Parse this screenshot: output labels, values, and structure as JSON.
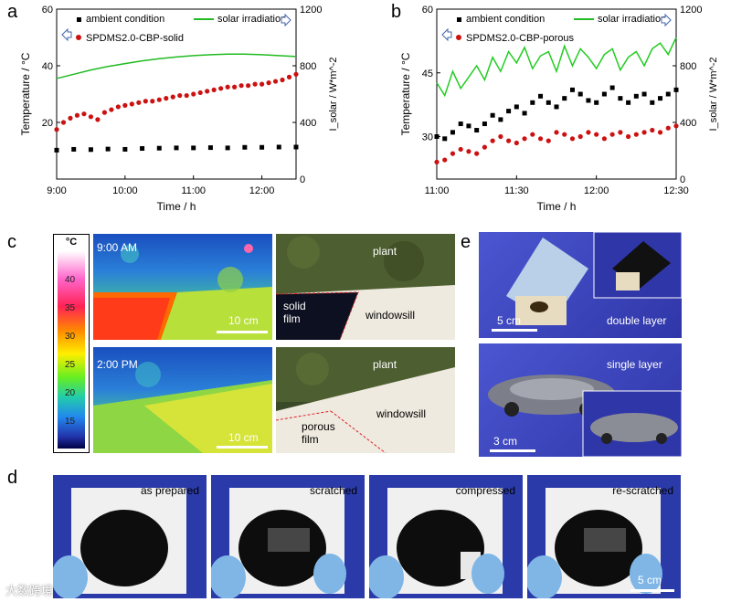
{
  "panels": {
    "a": "a",
    "b": "b",
    "c": "c",
    "d": "d",
    "e": "e"
  },
  "chart_data": [
    {
      "type": "line",
      "panel": "a",
      "xlabel": "Time / h",
      "ylabel_left": "Temperature / °C",
      "ylabel_right": "I_solar / W*m^-2",
      "x_ticks": [
        "9:00",
        "10:00",
        "11:00",
        "12:00"
      ],
      "x_tick_values": [
        9.0,
        10.0,
        11.0,
        12.0
      ],
      "xlim": [
        9.0,
        12.5
      ],
      "ylim_left": [
        0,
        60
      ],
      "ylim_right": [
        0,
        1200
      ],
      "y_ticks_left": [
        "20",
        "40",
        "60"
      ],
      "y_ticks_right": [
        "0",
        "400",
        "800",
        "1200"
      ],
      "legend": {
        "ambient": "ambient condition",
        "solar": "solar irradiation",
        "sample": "SPDMS2.0-CBP-solid"
      },
      "series": [
        {
          "name": "ambient condition",
          "axis": "left",
          "style": "markers",
          "color": "#000000",
          "x": [
            9.0,
            9.25,
            9.5,
            9.75,
            10.0,
            10.25,
            10.5,
            10.75,
            11.0,
            11.25,
            11.5,
            11.75,
            12.0,
            12.25,
            12.5
          ],
          "y": [
            10.2,
            10.5,
            10.4,
            10.6,
            10.5,
            10.8,
            10.9,
            11.0,
            11.0,
            11.1,
            11.0,
            11.2,
            11.2,
            11.3,
            11.3
          ]
        },
        {
          "name": "solar irradiation",
          "axis": "right",
          "style": "line",
          "color": "#22bb22",
          "x": [
            9.0,
            9.25,
            9.5,
            9.75,
            10.0,
            10.25,
            10.5,
            10.75,
            11.0,
            11.25,
            11.5,
            11.75,
            12.0,
            12.25,
            12.5
          ],
          "y": [
            710,
            740,
            770,
            795,
            815,
            835,
            850,
            862,
            872,
            878,
            882,
            882,
            878,
            872,
            865
          ]
        },
        {
          "name": "SPDMS2.0-CBP-solid",
          "axis": "left",
          "style": "markers",
          "color": "#cc1111",
          "x": [
            9.0,
            9.1,
            9.2,
            9.3,
            9.4,
            9.5,
            9.6,
            9.7,
            9.8,
            9.9,
            10.0,
            10.1,
            10.2,
            10.3,
            10.4,
            10.5,
            10.6,
            10.7,
            10.8,
            10.9,
            11.0,
            11.1,
            11.2,
            11.3,
            11.4,
            11.5,
            11.6,
            11.7,
            11.8,
            11.9,
            12.0,
            12.1,
            12.2,
            12.3,
            12.4,
            12.5
          ],
          "y": [
            17.5,
            20.0,
            21.5,
            22.5,
            23.0,
            22.0,
            21.0,
            23.5,
            24.5,
            25.5,
            26.0,
            26.5,
            27.0,
            27.5,
            27.5,
            28.0,
            28.5,
            29.0,
            29.5,
            29.5,
            30.0,
            30.5,
            31.0,
            31.5,
            32.0,
            32.5,
            32.5,
            33.0,
            33.0,
            33.5,
            33.5,
            34.0,
            34.5,
            35.0,
            36.0,
            37.0
          ]
        }
      ]
    },
    {
      "type": "line",
      "panel": "b",
      "xlabel": "Time / h",
      "ylabel_left": "Temperature / °C",
      "ylabel_right": "I_solar / W*m^-2",
      "x_ticks": [
        "11:00",
        "11:30",
        "12:00",
        "12:30"
      ],
      "x_tick_values": [
        11.0,
        11.5,
        12.0,
        12.5
      ],
      "xlim": [
        11.0,
        12.5
      ],
      "ylim_left": [
        20,
        60
      ],
      "ylim_right": [
        0,
        1200
      ],
      "y_ticks_left": [
        "30",
        "45",
        "60"
      ],
      "y_ticks_right": [
        "0",
        "400",
        "800",
        "1200"
      ],
      "legend": {
        "ambient": "ambient condition",
        "solar": "solar irradiation",
        "sample": "SPDMS2.0-CBP-porous"
      },
      "series": [
        {
          "name": "ambient condition",
          "axis": "left",
          "style": "markers",
          "color": "#000000",
          "x": [
            11.0,
            11.05,
            11.1,
            11.15,
            11.2,
            11.25,
            11.3,
            11.35,
            11.4,
            11.45,
            11.5,
            11.55,
            11.6,
            11.65,
            11.7,
            11.75,
            11.8,
            11.85,
            11.9,
            11.95,
            12.0,
            12.05,
            12.1,
            12.15,
            12.2,
            12.25,
            12.3,
            12.35,
            12.4,
            12.45,
            12.5
          ],
          "y": [
            30.0,
            29.5,
            31.0,
            33.0,
            32.5,
            31.5,
            33.0,
            35.0,
            34.0,
            36.0,
            37.0,
            35.5,
            38.0,
            39.5,
            38.0,
            37.0,
            39.0,
            41.0,
            40.0,
            38.5,
            38.0,
            40.0,
            41.5,
            39.0,
            38.0,
            39.5,
            40.0,
            38.0,
            39.0,
            40.0,
            41.0
          ]
        },
        {
          "name": "solar irradiation",
          "axis": "right",
          "style": "line",
          "color": "#22cc22",
          "x": [
            11.0,
            11.05,
            11.1,
            11.15,
            11.2,
            11.25,
            11.3,
            11.35,
            11.4,
            11.45,
            11.5,
            11.55,
            11.6,
            11.65,
            11.7,
            11.75,
            11.8,
            11.85,
            11.9,
            11.95,
            12.0,
            12.05,
            12.1,
            12.15,
            12.2,
            12.25,
            12.3,
            12.35,
            12.4,
            12.45,
            12.5
          ],
          "y": [
            680,
            590,
            760,
            640,
            720,
            800,
            700,
            860,
            760,
            900,
            820,
            930,
            780,
            870,
            900,
            760,
            940,
            800,
            920,
            860,
            780,
            880,
            920,
            770,
            860,
            900,
            800,
            920,
            960,
            880,
            1000
          ]
        },
        {
          "name": "SPDMS2.0-CBP-porous",
          "axis": "left",
          "style": "markers",
          "color": "#cc1111",
          "x": [
            11.0,
            11.05,
            11.1,
            11.15,
            11.2,
            11.25,
            11.3,
            11.35,
            11.4,
            11.45,
            11.5,
            11.55,
            11.6,
            11.65,
            11.7,
            11.75,
            11.8,
            11.85,
            11.9,
            11.95,
            12.0,
            12.05,
            12.1,
            12.15,
            12.2,
            12.25,
            12.3,
            12.35,
            12.4,
            12.45,
            12.5
          ],
          "y": [
            24.0,
            24.5,
            26.0,
            27.0,
            26.5,
            26.0,
            27.5,
            29.0,
            30.0,
            29.0,
            28.5,
            29.5,
            30.5,
            29.5,
            29.0,
            31.0,
            30.5,
            29.5,
            30.0,
            31.0,
            30.5,
            29.5,
            30.5,
            31.0,
            30.0,
            30.5,
            31.0,
            31.5,
            31.0,
            32.0,
            32.5
          ]
        }
      ]
    }
  ],
  "panel_c": {
    "colorbar": {
      "unit": "°C",
      "ticks": [
        "40",
        "35",
        "30",
        "25",
        "20",
        "15"
      ]
    },
    "thermal_top": {
      "time": "9:00 AM",
      "scale": "10 cm"
    },
    "thermal_bottom": {
      "time": "2:00 PM",
      "scale": "10 cm"
    },
    "photo_top": {
      "plant": "plant",
      "film": "solid\nfilm",
      "sill": "windowsill"
    },
    "photo_bottom": {
      "plant": "plant",
      "film": "porous\nfilm",
      "sill": "windowsill"
    }
  },
  "panel_d": {
    "captions": [
      "as prepared",
      "scratched",
      "compressed",
      "re-scratched"
    ],
    "scale": "5 cm"
  },
  "panel_e": {
    "top": {
      "scale": "5 cm",
      "label": "double layer"
    },
    "bottom": {
      "scale": "3 cm",
      "label": "single layer"
    }
  },
  "watermark": "大数跨境"
}
